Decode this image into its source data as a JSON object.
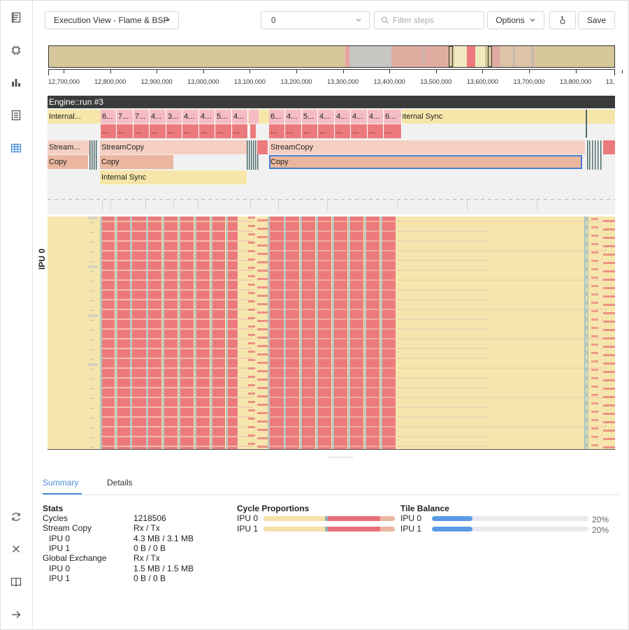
{
  "toolbar": {
    "view_label": "Execution View - Flame & BSP",
    "step_value": "0",
    "filter_placeholder": "Filter steps",
    "options_label": "Options",
    "save_label": "Save"
  },
  "rail": {
    "top_icons": [
      "report-icon",
      "chip-icon",
      "bar-chart-icon",
      "document-icon",
      "table-icon"
    ],
    "bottom_icons": [
      "refresh-icon",
      "close-icon",
      "book-icon",
      "arrow-right-icon"
    ],
    "active": "table-icon"
  },
  "axis": {
    "ticks": [
      "12,700,000",
      "12,800,000",
      "12,900,000",
      "13,000,000",
      "13,100,000",
      "13,200,000",
      "13,300,000",
      "13,400,000",
      "13,500,000",
      "13,600,000",
      "13,700,000",
      "13,800,000",
      "13,"
    ]
  },
  "flame": {
    "header": "Engine::run #3",
    "level1": {
      "left_label": "Internal...",
      "group_a": [
        "6...",
        "7...",
        "7...",
        "4...",
        "3...",
        "4...",
        "4...",
        "5...",
        "4..."
      ],
      "group_b": [
        "6...",
        "4...",
        "5...",
        "4...",
        "4...",
        "4...",
        "4...",
        "6..."
      ],
      "right_label": "Internal Sync"
    },
    "level2_label": "...",
    "level3": {
      "left": "Stream...",
      "mid": "StreamCopy",
      "right": "StreamCopy"
    },
    "level4": {
      "left": "Copy",
      "mid": "Copy",
      "right": "Copy"
    },
    "level5": {
      "label": "Internal Sync"
    }
  },
  "bsp": {
    "label": "IPU 0"
  },
  "colors": {
    "sync": "#f6e6aa",
    "compute": "#ec7a7c",
    "exchange": "#a7c0c4",
    "accent": "#4a90d9"
  },
  "tabs": {
    "summary": "Summary",
    "details": "Details"
  },
  "stats": {
    "title": "Stats",
    "rows": [
      {
        "label": "Cycles",
        "value": "1218506"
      },
      {
        "label": "Stream Copy",
        "value": "Rx / Tx"
      },
      {
        "label": "IPU 0",
        "value": "4.3 MB / 3.1 MB"
      },
      {
        "label": "IPU 1",
        "value": "0 B / 0 B"
      },
      {
        "label": "Global Exchange",
        "value": "Rx / Tx"
      },
      {
        "label": "IPU 0",
        "value": "1.5 MB / 1.5 MB"
      },
      {
        "label": "IPU 1",
        "value": "0 B / 0 B"
      }
    ]
  },
  "cycle_proportions": {
    "title": "Cycle Proportions",
    "rows": [
      {
        "label": "IPU 0",
        "parts": [
          0.47,
          0.02,
          0.4,
          0.11
        ]
      },
      {
        "label": "IPU 1",
        "parts": [
          0.47,
          0.02,
          0.4,
          0.11
        ]
      }
    ],
    "part_colors": [
      "#f6e0a8",
      "#8fb3b5",
      "#e8707a",
      "#eab79e"
    ]
  },
  "tile_balance": {
    "title": "Tile Balance",
    "rows": [
      {
        "label": "IPU 0",
        "fraction": 0.2,
        "value": "20%"
      },
      {
        "label": "IPU 1",
        "fraction": 0.2,
        "value": "20%"
      }
    ]
  }
}
